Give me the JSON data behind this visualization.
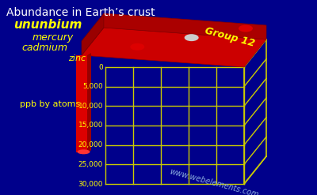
{
  "title": "Abundance in Earth’s crust",
  "ylabel": "ppb by atoms",
  "xlabel": "Group 12",
  "watermark": "www.webelements.com",
  "categories": [
    "zinc",
    "cadmium",
    "mercury",
    "ununbium"
  ],
  "values": [
    25000,
    30,
    5,
    0
  ],
  "bar_color": "#dd0000",
  "background_color": "#00008b",
  "grid_color": "#cccc00",
  "text_color": "#ffff00",
  "title_color": "#ffffff",
  "yticks": [
    0,
    5000,
    10000,
    15000,
    20000,
    25000,
    30000
  ],
  "ylim": [
    0,
    30000
  ],
  "floor_color": "#bb0000",
  "watermark_color": "#88aadd",
  "axis_color": "#cccc00"
}
